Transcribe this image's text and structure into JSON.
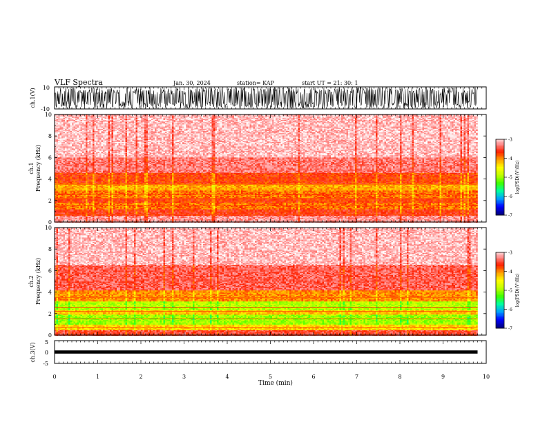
{
  "header": {
    "title": "VLF Spectra",
    "date": "Jan. 30, 2024",
    "station": "station= KAP",
    "start": "start UT =  21: 30: 1"
  },
  "chart_data": [
    {
      "type": "line",
      "panel": "ch1-waveform",
      "ylabel": "ch.1(V)",
      "ylim": [
        -10,
        10
      ],
      "yticks": [
        "10",
        "-10"
      ],
      "xlim": [
        0,
        10
      ],
      "description_values": {
        "amplitude_range": [
          -10,
          10
        ],
        "data_end_min": 9.8
      }
    },
    {
      "type": "heatmap",
      "panel": "ch1-spectrogram",
      "ylabel_line1": "ch.1",
      "ylabel_line2": "Frequency (kHz)",
      "ylim": [
        0,
        10
      ],
      "yticks": [
        "0",
        "2",
        "4",
        "6",
        "8",
        "10"
      ],
      "xlim": [
        0,
        10
      ],
      "colorbar": {
        "label": "log(PSD)(V²/Hz)",
        "range": [
          -7,
          -3
        ],
        "ticks": [
          "-3",
          "-4",
          "-5",
          "-6",
          "-7"
        ]
      },
      "bands": [
        {
          "f": [
            0,
            0.6
          ],
          "level": -3.2
        },
        {
          "f": [
            0.6,
            1.2
          ],
          "level": -3.6
        },
        {
          "f": [
            1.2,
            1.8
          ],
          "level": -3.9
        },
        {
          "f": [
            1.8,
            2.2
          ],
          "level": -3.7
        },
        {
          "f": [
            2.2,
            3.0
          ],
          "level": -3.9
        },
        {
          "f": [
            3.0,
            3.6
          ],
          "level": -4.1
        },
        {
          "f": [
            3.6,
            4.6
          ],
          "level": -3.7
        },
        {
          "f": [
            4.6,
            6.0
          ],
          "level": -3.3
        },
        {
          "f": [
            6.0,
            10.0
          ],
          "level": -3.05
        }
      ]
    },
    {
      "type": "heatmap",
      "panel": "ch2-spectrogram",
      "ylabel_line1": "ch.2",
      "ylabel_line2": "Frequency (kHz)",
      "ylim": [
        0,
        10
      ],
      "yticks": [
        "0",
        "2",
        "4",
        "6",
        "8",
        "10"
      ],
      "xlim": [
        0,
        10
      ],
      "colorbar": {
        "label": "log(PSD)(V²/Hz)",
        "range": [
          -7,
          -3
        ],
        "ticks": [
          "-3",
          "-4",
          "-5",
          "-6",
          "-7"
        ]
      },
      "bands": [
        {
          "f": [
            0,
            0.5
          ],
          "level": -3.5
        },
        {
          "f": [
            0.5,
            1.0
          ],
          "level": -4.3
        },
        {
          "f": [
            1.0,
            1.9
          ],
          "level": -5.0
        },
        {
          "f": [
            1.9,
            2.3
          ],
          "level": -4.2
        },
        {
          "f": [
            2.3,
            3.2
          ],
          "level": -4.9
        },
        {
          "f": [
            3.2,
            4.2
          ],
          "level": -4.0
        },
        {
          "f": [
            4.2,
            6.5
          ],
          "level": -3.4
        },
        {
          "f": [
            6.5,
            10.0
          ],
          "level": -3.05
        }
      ]
    },
    {
      "type": "line",
      "panel": "ch3-waveform",
      "ylabel": "ch.3(V)",
      "ylim": [
        -5,
        5
      ],
      "yticks": [
        "5",
        "0",
        "-5"
      ],
      "xlim": [
        0,
        10
      ],
      "description_values": {
        "amplitude_range": [
          -0.5,
          0.5
        ],
        "data_end_min": 9.8
      }
    }
  ],
  "xaxis": {
    "label": "Time (min)",
    "ticks": [
      "0",
      "1",
      "2",
      "3",
      "4",
      "5",
      "6",
      "7",
      "8",
      "9",
      "10"
    ]
  },
  "colors": {
    "background": "#ffffff",
    "trace": "#000000",
    "colormap": [
      "#000080",
      "#0000ff",
      "#00a0ff",
      "#00ffa0",
      "#40ff00",
      "#c0ff00",
      "#ffff00",
      "#ffa000",
      "#ff2000",
      "#ff9090",
      "#ffffff"
    ]
  }
}
